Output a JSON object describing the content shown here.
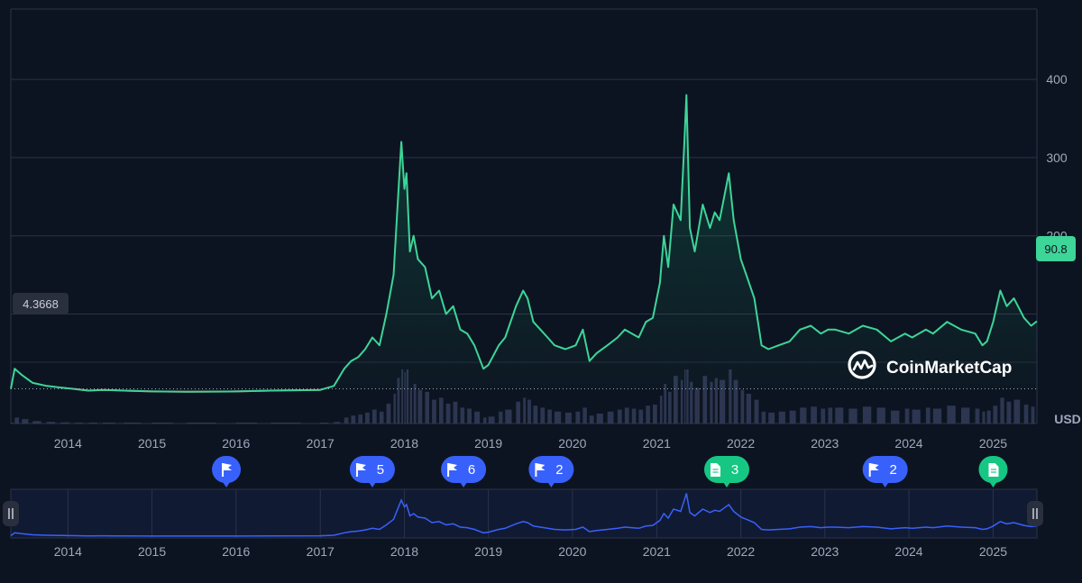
{
  "chart_data": {
    "type": "line",
    "title": "",
    "currency_label": "USD",
    "current_price_label": "90.8",
    "baseline_label": "4.3668",
    "y_ticks": [
      200,
      300,
      400
    ],
    "y_tick_labels": [
      "200",
      "300",
      "400"
    ],
    "ylim": [
      -40,
      490
    ],
    "x_ticks": [
      "2014",
      "2015",
      "2016",
      "2017",
      "2018",
      "2019",
      "2020",
      "2021",
      "2022",
      "2023",
      "2024",
      "2025"
    ],
    "xlim": [
      "2013-04-28",
      "2025-07-10"
    ],
    "colors": {
      "up": "#3dd598",
      "down": "#ea3943",
      "navigator_line": "#3861fb",
      "flag_marker": "#3861fb",
      "news_marker": "#16c784",
      "background": "#0d1421"
    },
    "series": [
      {
        "values_x": [
          "2013-04-28",
          "2013-05-15",
          "2013-06-15",
          "2013-08-01",
          "2013-10-01",
          "2013-12-01",
          "2014-02-01",
          "2014-04-01",
          "2014-06-01",
          "2014-09-01",
          "2015-01-01",
          "2015-06-01",
          "2016-01-01",
          "2016-06-01",
          "2017-01-01",
          "2017-03-01",
          "2017-04-15",
          "2017-05-15",
          "2017-06-15",
          "2017-07-15",
          "2017-08-15",
          "2017-09-15",
          "2017-10-15",
          "2017-11-15",
          "2017-12-01",
          "2017-12-19",
          "2018-01-01",
          "2018-01-10",
          "2018-01-25",
          "2018-02-10",
          "2018-03-01",
          "2018-04-01",
          "2018-05-01",
          "2018-06-01",
          "2018-07-01",
          "2018-08-01",
          "2018-09-01",
          "2018-10-01",
          "2018-11-01",
          "2018-12-10",
          "2019-01-01",
          "2019-02-15",
          "2019-03-15",
          "2019-05-01",
          "2019-06-01",
          "2019-06-20",
          "2019-07-15",
          "2019-08-15",
          "2019-09-15",
          "2019-10-15",
          "2019-12-01",
          "2020-01-15",
          "2020-02-15",
          "2020-03-15",
          "2020-04-15",
          "2020-06-01",
          "2020-07-15",
          "2020-08-15",
          "2020-09-15",
          "2020-10-15",
          "2020-11-15",
          "2020-12-15",
          "2021-01-15",
          "2021-02-01",
          "2021-02-20",
          "2021-03-15",
          "2021-04-15",
          "2021-05-01",
          "2021-05-10",
          "2021-05-25",
          "2021-06-15",
          "2021-07-20",
          "2021-08-20",
          "2021-09-10",
          "2021-10-01",
          "2021-11-10",
          "2021-12-01",
          "2022-01-01",
          "2022-01-25",
          "2022-03-01",
          "2022-04-01",
          "2022-05-01",
          "2022-06-15",
          "2022-08-01",
          "2022-09-15",
          "2022-11-01",
          "2022-12-15",
          "2023-01-15",
          "2023-02-15",
          "2023-04-15",
          "2023-06-15",
          "2023-08-15",
          "2023-10-15",
          "2023-12-15",
          "2024-01-15",
          "2024-03-15",
          "2024-04-15",
          "2024-06-15",
          "2024-08-15",
          "2024-10-15",
          "2024-11-15",
          "2024-12-05",
          "2025-01-01",
          "2025-02-01",
          "2025-03-01",
          "2025-04-01",
          "2025-05-15",
          "2025-06-15",
          "2025-07-10"
        ],
        "values": [
          4.4,
          30,
          22,
          12,
          8,
          6,
          4,
          2,
          3,
          2,
          1,
          0.5,
          1,
          2,
          3,
          8,
          30,
          40,
          45,
          55,
          70,
          60,
          100,
          150,
          230,
          320,
          260,
          280,
          180,
          200,
          170,
          160,
          120,
          130,
          100,
          110,
          80,
          75,
          60,
          30,
          35,
          60,
          70,
          110,
          130,
          120,
          90,
          80,
          70,
          60,
          55,
          60,
          80,
          40,
          50,
          60,
          70,
          80,
          75,
          70,
          90,
          95,
          140,
          200,
          160,
          240,
          220,
          320,
          380,
          210,
          180,
          240,
          210,
          230,
          220,
          280,
          220,
          170,
          150,
          120,
          60,
          55,
          60,
          65,
          80,
          85,
          75,
          80,
          80,
          75,
          85,
          80,
          65,
          75,
          70,
          80,
          75,
          90,
          80,
          75,
          60,
          65,
          90,
          130,
          110,
          120,
          95,
          85,
          90.8
        ]
      }
    ]
  },
  "events": [
    {
      "type": "flag",
      "label": "",
      "date": "2015-11-20"
    },
    {
      "type": "flag",
      "label": "5",
      "date": "2017-08-15"
    },
    {
      "type": "flag",
      "label": "6",
      "date": "2018-09-15"
    },
    {
      "type": "flag",
      "label": "2",
      "date": "2019-10-01"
    },
    {
      "type": "news",
      "label": "3",
      "date": "2021-11-01"
    },
    {
      "type": "flag",
      "label": "2",
      "date": "2023-09-20"
    },
    {
      "type": "news",
      "label": "",
      "date": "2025-01-01"
    }
  ],
  "brand": {
    "name": "CoinMarketCap"
  }
}
